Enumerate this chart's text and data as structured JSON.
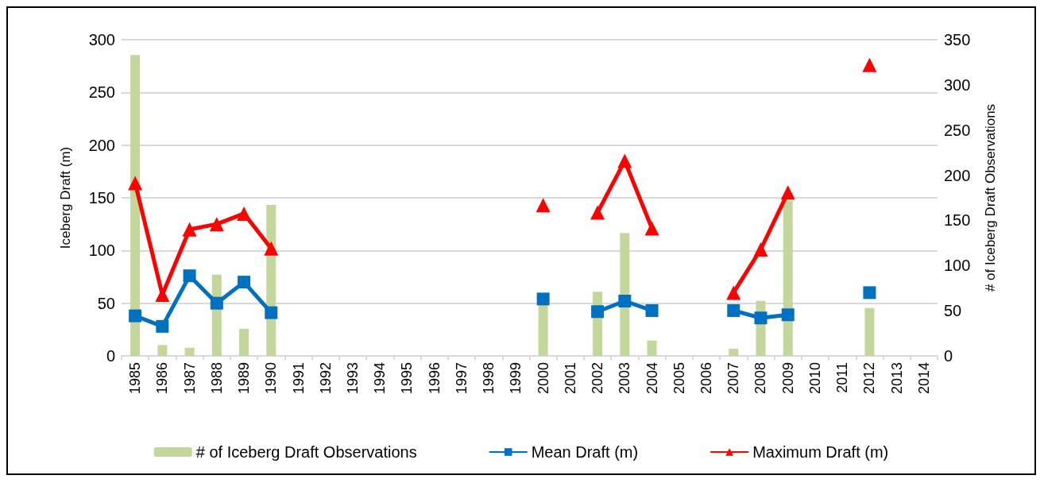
{
  "chart_data": {
    "type": "line",
    "ylabel": "Iceberg Draft (m)",
    "y2label": "# of Iceberg Draft Observations",
    "categories": [
      "1985",
      "1986",
      "1987",
      "1988",
      "1989",
      "1990",
      "1991",
      "1992",
      "1993",
      "1994",
      "1995",
      "1996",
      "1997",
      "1998",
      "1999",
      "2000",
      "2001",
      "2002",
      "2003",
      "2004",
      "2005",
      "2006",
      "2007",
      "2008",
      "2009",
      "2010",
      "2011",
      "2012",
      "2013",
      "2014"
    ],
    "ylim": [
      0,
      300
    ],
    "yticks": [
      0,
      50,
      100,
      150,
      200,
      250,
      300
    ],
    "y2lim": [
      0,
      350
    ],
    "y2ticks": [
      0,
      50,
      100,
      150,
      200,
      250,
      300,
      350
    ],
    "grid": "y",
    "legend": "bottom",
    "series": [
      {
        "name": "# of Iceberg Draft Observations",
        "type": "bar",
        "axis": "y2",
        "color": "#c3d69b",
        "values": [
          333,
          12,
          9,
          90,
          30,
          167,
          null,
          null,
          null,
          null,
          null,
          null,
          null,
          null,
          null,
          57,
          null,
          71,
          136,
          17,
          null,
          null,
          8,
          61,
          172,
          null,
          null,
          53,
          null,
          null
        ]
      },
      {
        "name": "Mean Draft (m)",
        "marker": "square",
        "color": "#0070c0",
        "values": [
          38,
          28,
          76,
          50,
          70,
          41,
          null,
          null,
          null,
          null,
          null,
          null,
          null,
          null,
          null,
          54,
          null,
          42,
          52,
          43,
          null,
          null,
          43,
          36,
          39,
          null,
          null,
          60,
          null,
          null
        ]
      },
      {
        "name": "Maximum Draft (m)",
        "marker": "triangle",
        "color": "#ff0000",
        "values": [
          164,
          58,
          120,
          125,
          135,
          102,
          null,
          null,
          null,
          null,
          null,
          null,
          null,
          null,
          null,
          143,
          null,
          136,
          185,
          121,
          null,
          null,
          60,
          101,
          155,
          null,
          null,
          276,
          null,
          null
        ]
      }
    ]
  }
}
